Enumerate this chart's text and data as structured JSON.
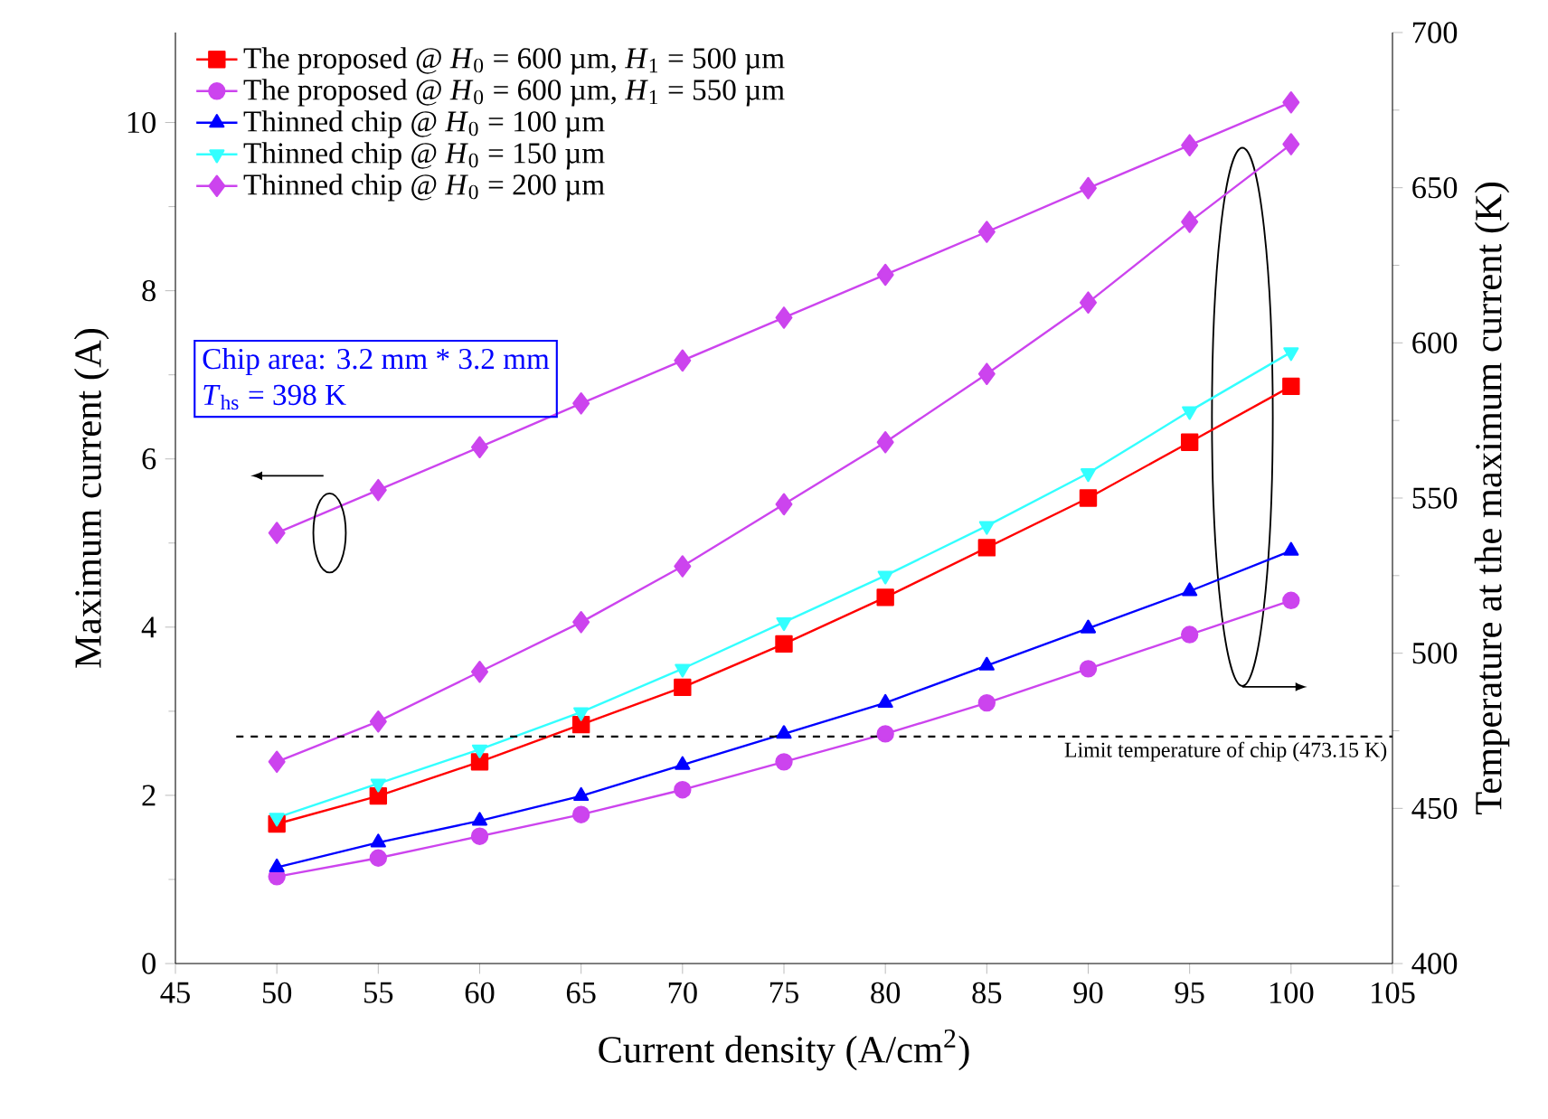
{
  "chart_data": {
    "type": "line",
    "xlabel": "Current density (A/cm$^{2}$)",
    "ylabel": "Maximum current (A)",
    "y2label": "Temperature at the maximum current (K)",
    "x": [
      50,
      55,
      60,
      65,
      70,
      75,
      80,
      85,
      90,
      95,
      100
    ],
    "xlim": [
      45,
      105
    ],
    "xticks": [
      45,
      50,
      55,
      60,
      65,
      70,
      75,
      80,
      85,
      90,
      95,
      100,
      105
    ],
    "ylim": [
      0,
      11.07
    ],
    "yticks": [
      0,
      2,
      4,
      6,
      8,
      10
    ],
    "y2lim": [
      400,
      700
    ],
    "y2ticks": [
      400,
      450,
      500,
      550,
      600,
      650,
      700
    ],
    "legend": "top left",
    "grid": false,
    "line_style": "solid",
    "series": [
      {
        "color": "#cc44ee",
        "marker": "diamond",
        "values": [
          5.12,
          5.63,
          6.14,
          6.66,
          7.17,
          7.68,
          8.19,
          8.7,
          9.22,
          9.73,
          10.24
        ]
      },
      {
        "name": "The proposed @ *H*$_{0}$ = 600 µm, *H*$_{1}$ = 500 µm",
        "color": "#ff0000",
        "marker": "square",
        "axis": "y2",
        "values": [
          445,
          454,
          465,
          477,
          489,
          503,
          518,
          534,
          550,
          568,
          586
        ]
      },
      {
        "name": "The proposed @ *H*$_{0}$ = 600 µm, *H*$_{1}$ = 550 µm",
        "color": "#cc44ee",
        "marker": "circle",
        "axis": "y2",
        "values": [
          428,
          434,
          441,
          448,
          456,
          465,
          474,
          484,
          495,
          506,
          517
        ]
      },
      {
        "name": "Thinned chip @ *H*$_{0}$ = 100 µm",
        "color": "#0000ff",
        "marker": "triangle",
        "axis": "y2",
        "values": [
          431,
          439,
          446,
          454,
          464,
          474,
          484,
          496,
          508,
          520,
          533
        ]
      },
      {
        "name": "Thinned chip @ *H*$_{0}$ = 150 µm",
        "color": "#33ffff",
        "marker": "triangle-down",
        "axis": "y2",
        "values": [
          447,
          458,
          469,
          481,
          495,
          510,
          525,
          541,
          558,
          578,
          597
        ]
      },
      {
        "name": "Thinned chip @ *H*$_{0}$ = 200 µm",
        "color": "#cc44ee",
        "marker": "diamond",
        "axis": "y2",
        "values": [
          465,
          478,
          494,
          510,
          528,
          548,
          568,
          590,
          613,
          639,
          664
        ]
      }
    ],
    "ref_lines": [
      {
        "axis": "y2",
        "value": 473.15,
        "label": "Limit temperature of chip (473.15 K)",
        "color": "#000000",
        "line_style": "dashed"
      }
    ],
    "annotations": [
      "Chip area: 3.2 mm * 3.2 mm",
      "*T*$_{hs}$ = 398 K"
    ]
  }
}
